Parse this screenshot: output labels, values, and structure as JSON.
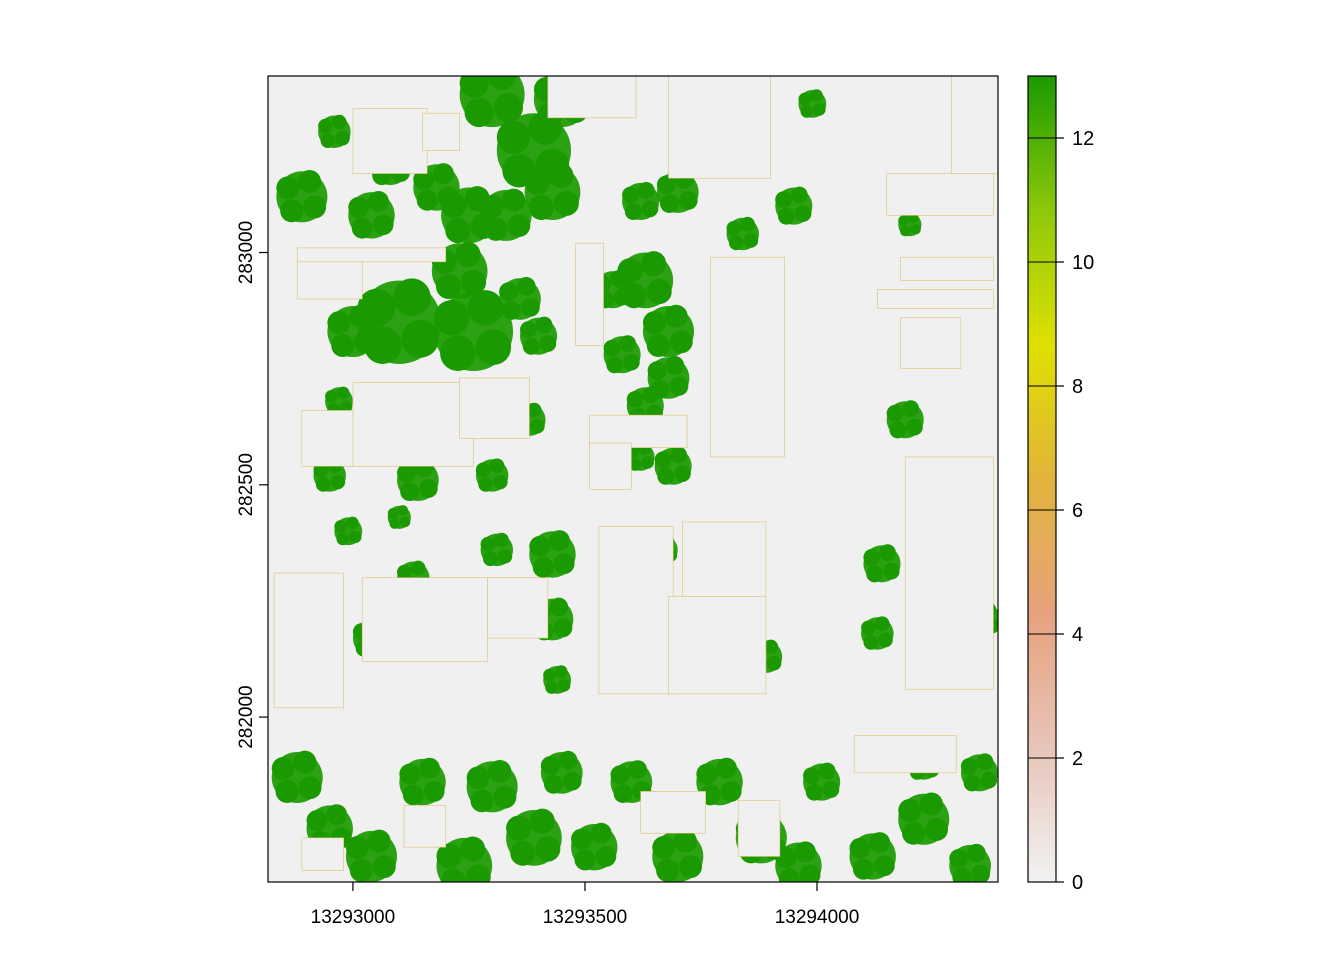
{
  "chart_data": {
    "type": "heatmap",
    "title": "",
    "xlabel": "",
    "ylabel": "",
    "x_ticks": [
      13293000,
      13293500,
      13294000
    ],
    "y_ticks": [
      282000,
      282500,
      283000
    ],
    "xlim": [
      13292817,
      13294390
    ],
    "ylim": [
      281645,
      283380
    ],
    "legend": {
      "position": "right",
      "ticks": [
        0,
        2,
        4,
        6,
        8,
        10,
        12
      ],
      "range": [
        0,
        13
      ],
      "colors": [
        "#f2f2f2",
        "#e8c4b8",
        "#e6a27e",
        "#e1b43b",
        "#e0e000",
        "#8dc80a",
        "#1a9a00"
      ]
    },
    "background_color": "#f0f0f0",
    "vegetation_color": "#1a9a00",
    "buildings": [
      {
        "x": [
          13292890,
          13293030
        ],
        "y": [
          282540,
          282660
        ]
      },
      {
        "x": [
          13293000,
          13293260
        ],
        "y": [
          282540,
          282720
        ]
      },
      {
        "x": [
          13293230,
          13293380
        ],
        "y": [
          282600,
          282730
        ]
      },
      {
        "x": [
          13292880,
          13293020
        ],
        "y": [
          282900,
          282990
        ]
      },
      {
        "x": [
          13292880,
          13293200
        ],
        "y": [
          282980,
          283010
        ]
      },
      {
        "x": [
          13293480,
          13293540
        ],
        "y": [
          282800,
          283020
        ]
      },
      {
        "x": [
          13293770,
          13293930
        ],
        "y": [
          282560,
          282990
        ]
      },
      {
        "x": [
          13293510,
          13293720
        ],
        "y": [
          282580,
          282650
        ]
      },
      {
        "x": [
          13293510,
          13293600
        ],
        "y": [
          282490,
          282590
        ]
      },
      {
        "x": [
          13293530,
          13293690
        ],
        "y": [
          282050,
          282410
        ]
      },
      {
        "x": [
          13293680,
          13293890
        ],
        "y": [
          282050,
          282260
        ]
      },
      {
        "x": [
          13293710,
          13293890
        ],
        "y": [
          282260,
          282420
        ]
      },
      {
        "x": [
          13294190,
          13294380
        ],
        "y": [
          282060,
          282560
        ]
      },
      {
        "x": [
          13294180,
          13294310
        ],
        "y": [
          282750,
          282860
        ]
      },
      {
        "x": [
          13294180,
          13294380
        ],
        "y": [
          282940,
          282990
        ]
      },
      {
        "x": [
          13294130,
          13294380
        ],
        "y": [
          282880,
          282920
        ]
      },
      {
        "x": [
          13294150,
          13294380
        ],
        "y": [
          283080,
          283170
        ]
      },
      {
        "x": [
          13294290,
          13294390
        ],
        "y": [
          283170,
          283380
        ]
      },
      {
        "x": [
          13293680,
          13293900
        ],
        "y": [
          283160,
          283380
        ]
      },
      {
        "x": [
          13293420,
          13293610
        ],
        "y": [
          283290,
          283380
        ]
      },
      {
        "x": [
          13293000,
          13293160
        ],
        "y": [
          283170,
          283310
        ]
      },
      {
        "x": [
          13293150,
          13293230
        ],
        "y": [
          283220,
          283300
        ]
      },
      {
        "x": [
          13293020,
          13293290
        ],
        "y": [
          282120,
          282300
        ]
      },
      {
        "x": [
          13292830,
          13292980
        ],
        "y": [
          282020,
          282310
        ]
      },
      {
        "x": [
          13293290,
          13293420
        ],
        "y": [
          282170,
          282300
        ]
      },
      {
        "x": [
          13293830,
          13293920
        ],
        "y": [
          281700,
          281820
        ]
      },
      {
        "x": [
          13293620,
          13293760
        ],
        "y": [
          281750,
          281840
        ]
      },
      {
        "x": [
          13294080,
          13294300
        ],
        "y": [
          281880,
          281960
        ]
      },
      {
        "x": [
          13292890,
          13292980
        ],
        "y": [
          281670,
          281740
        ]
      },
      {
        "x": [
          13293110,
          13293200
        ],
        "y": [
          281720,
          281810
        ]
      }
    ],
    "vegetation_patches": [
      {
        "x": 13293080,
        "y": 283190,
        "r": 45
      },
      {
        "x": 13293300,
        "y": 283340,
        "r": 70
      },
      {
        "x": 13293390,
        "y": 283220,
        "r": 80
      },
      {
        "x": 13293450,
        "y": 283330,
        "r": 60
      },
      {
        "x": 13293430,
        "y": 283130,
        "r": 60
      },
      {
        "x": 13293180,
        "y": 283140,
        "r": 50
      },
      {
        "x": 13292890,
        "y": 283120,
        "r": 55
      },
      {
        "x": 13293040,
        "y": 283080,
        "r": 50
      },
      {
        "x": 13293250,
        "y": 283080,
        "r": 60
      },
      {
        "x": 13293330,
        "y": 283080,
        "r": 55
      },
      {
        "x": 13292960,
        "y": 283260,
        "r": 35
      },
      {
        "x": 13293620,
        "y": 283110,
        "r": 40
      },
      {
        "x": 13293700,
        "y": 283130,
        "r": 45
      },
      {
        "x": 13293840,
        "y": 283040,
        "r": 35
      },
      {
        "x": 13293950,
        "y": 283100,
        "r": 40
      },
      {
        "x": 13293990,
        "y": 283320,
        "r": 30
      },
      {
        "x": 13294200,
        "y": 283060,
        "r": 25
      },
      {
        "x": 13293830,
        "y": 283330,
        "r": 40
      },
      {
        "x": 13293740,
        "y": 283340,
        "r": 35
      },
      {
        "x": 13293100,
        "y": 282850,
        "r": 90
      },
      {
        "x": 13293260,
        "y": 282830,
        "r": 85
      },
      {
        "x": 13293230,
        "y": 282960,
        "r": 60
      },
      {
        "x": 13293000,
        "y": 282830,
        "r": 55
      },
      {
        "x": 13293360,
        "y": 282900,
        "r": 45
      },
      {
        "x": 13293400,
        "y": 282820,
        "r": 40
      },
      {
        "x": 13293560,
        "y": 282920,
        "r": 40
      },
      {
        "x": 13293630,
        "y": 282940,
        "r": 60
      },
      {
        "x": 13293680,
        "y": 282830,
        "r": 55
      },
      {
        "x": 13293580,
        "y": 282780,
        "r": 40
      },
      {
        "x": 13293680,
        "y": 282730,
        "r": 45
      },
      {
        "x": 13293630,
        "y": 282670,
        "r": 40
      },
      {
        "x": 13293840,
        "y": 282690,
        "r": 45
      },
      {
        "x": 13292970,
        "y": 282680,
        "r": 30
      },
      {
        "x": 13293060,
        "y": 282650,
        "r": 25
      },
      {
        "x": 13293380,
        "y": 282640,
        "r": 35
      },
      {
        "x": 13293140,
        "y": 282510,
        "r": 45
      },
      {
        "x": 13292950,
        "y": 282520,
        "r": 35
      },
      {
        "x": 13293300,
        "y": 282520,
        "r": 35
      },
      {
        "x": 13293690,
        "y": 282540,
        "r": 40
      },
      {
        "x": 13293620,
        "y": 282560,
        "r": 30
      },
      {
        "x": 13294250,
        "y": 282420,
        "r": 60
      },
      {
        "x": 13294190,
        "y": 282640,
        "r": 40
      },
      {
        "x": 13294260,
        "y": 282200,
        "r": 40
      },
      {
        "x": 13294360,
        "y": 282210,
        "r": 35
      },
      {
        "x": 13294140,
        "y": 282330,
        "r": 40
      },
      {
        "x": 13294130,
        "y": 282180,
        "r": 35
      },
      {
        "x": 13293430,
        "y": 282350,
        "r": 50
      },
      {
        "x": 13293310,
        "y": 282360,
        "r": 35
      },
      {
        "x": 13293430,
        "y": 282210,
        "r": 45
      },
      {
        "x": 13293250,
        "y": 282220,
        "r": 40
      },
      {
        "x": 13293040,
        "y": 282170,
        "r": 40
      },
      {
        "x": 13293130,
        "y": 282300,
        "r": 35
      },
      {
        "x": 13292990,
        "y": 282400,
        "r": 30
      },
      {
        "x": 13293440,
        "y": 282080,
        "r": 30
      },
      {
        "x": 13293780,
        "y": 282270,
        "r": 45
      },
      {
        "x": 13293890,
        "y": 282130,
        "r": 35
      },
      {
        "x": 13293670,
        "y": 282360,
        "r": 30
      },
      {
        "x": 13293100,
        "y": 282430,
        "r": 25
      },
      {
        "x": 13292880,
        "y": 281870,
        "r": 55
      },
      {
        "x": 13292950,
        "y": 281760,
        "r": 50
      },
      {
        "x": 13293040,
        "y": 281700,
        "r": 55
      },
      {
        "x": 13293150,
        "y": 281860,
        "r": 50
      },
      {
        "x": 13293240,
        "y": 281680,
        "r": 60
      },
      {
        "x": 13293300,
        "y": 281850,
        "r": 55
      },
      {
        "x": 13293390,
        "y": 281740,
        "r": 60
      },
      {
        "x": 13293450,
        "y": 281880,
        "r": 45
      },
      {
        "x": 13293520,
        "y": 281720,
        "r": 50
      },
      {
        "x": 13293600,
        "y": 281860,
        "r": 45
      },
      {
        "x": 13293700,
        "y": 281700,
        "r": 55
      },
      {
        "x": 13293790,
        "y": 281860,
        "r": 50
      },
      {
        "x": 13293880,
        "y": 281740,
        "r": 55
      },
      {
        "x": 13293960,
        "y": 281680,
        "r": 50
      },
      {
        "x": 13294010,
        "y": 281860,
        "r": 40
      },
      {
        "x": 13294120,
        "y": 281700,
        "r": 50
      },
      {
        "x": 13294230,
        "y": 281780,
        "r": 55
      },
      {
        "x": 13294330,
        "y": 281680,
        "r": 45
      },
      {
        "x": 13294350,
        "y": 281880,
        "r": 40
      },
      {
        "x": 13294230,
        "y": 281900,
        "r": 35
      }
    ]
  }
}
